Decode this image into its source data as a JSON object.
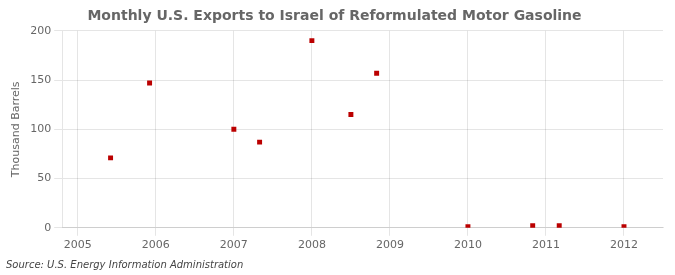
{
  "chart_data": {
    "type": "scatter",
    "title": "Monthly U.S. Exports to Israel of Reformulated Motor Gasoline",
    "ylabel": "Thousand Barrels",
    "annotations": [
      "Source: U.S. Energy Information Administration"
    ],
    "x": [
      2005.42,
      2005.92,
      2007.0,
      2007.33,
      2008.0,
      2008.5,
      2008.83,
      2010.0,
      2010.83,
      2011.17,
      2012.0
    ],
    "values": [
      71,
      147,
      100,
      87,
      190,
      115,
      157,
      1,
      2,
      2,
      1
    ],
    "color": "#bb0000",
    "marker": "square",
    "xlim": [
      2004.8,
      2012.5
    ],
    "xticks": [
      2005,
      2006,
      2007,
      2008,
      2009,
      2010,
      2011,
      2012
    ],
    "ylim": [
      0,
      200
    ],
    "yticks": [
      0,
      50,
      100,
      150,
      200
    ],
    "grid": true
  }
}
